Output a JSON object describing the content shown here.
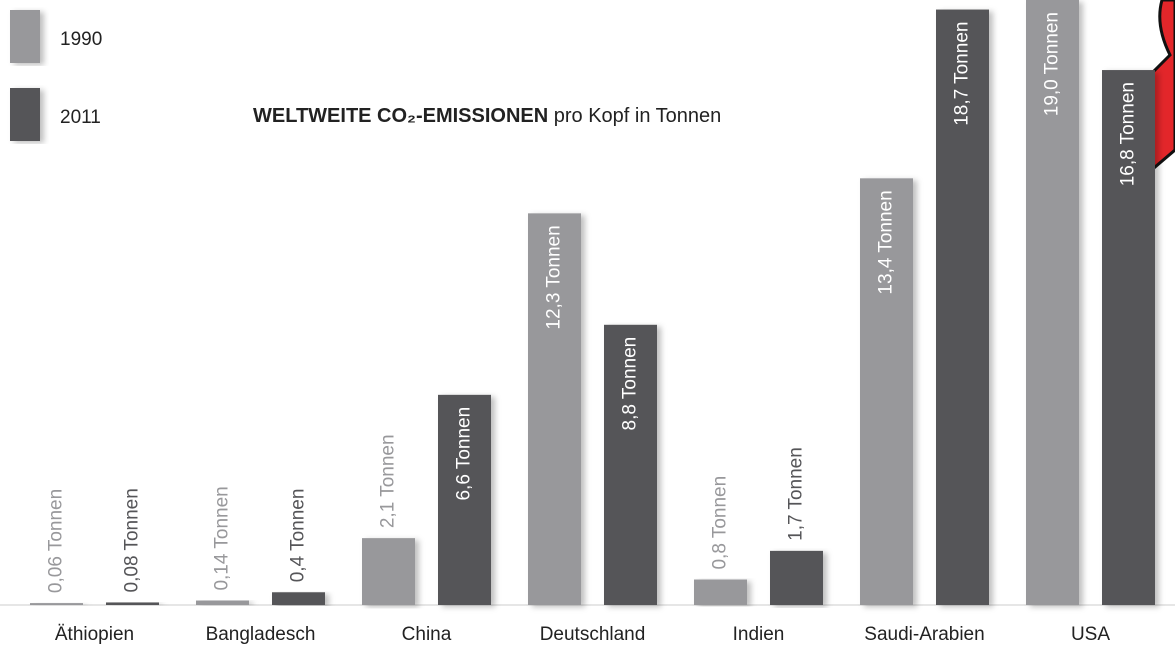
{
  "chart_data": {
    "type": "bar",
    "title_bold": "WELTWEITE CO₂-EMISSIONEN",
    "title_rest": "pro Kopf in Tonnen",
    "categories": [
      "Äthiopien",
      "Bangladesch",
      "China",
      "Deutschland",
      "Indien",
      "Saudi-Arabien",
      "USA"
    ],
    "series": [
      {
        "name": "1990",
        "color": "#98989b",
        "values": [
          0.06,
          0.14,
          2.1,
          12.3,
          0.8,
          13.4,
          19.0
        ],
        "value_labels": [
          "0,06 Tonnen",
          "0,14 Tonnen",
          "2,1 Tonnen",
          "12,3 Tonnen",
          "0,8 Tonnen",
          "13,4 Tonnen",
          "19,0 Tonnen"
        ]
      },
      {
        "name": "2011",
        "color": "#555558",
        "values": [
          0.08,
          0.4,
          6.6,
          8.8,
          1.7,
          18.7,
          16.8
        ],
        "value_labels": [
          "0,08 Tonnen",
          "0,4 Tonnen",
          "6,6 Tonnen",
          "8,8 Tonnen",
          "1,7 Tonnen",
          "18,7 Tonnen",
          "16,8 Tonnen"
        ]
      }
    ],
    "ylim": [
      0,
      19
    ]
  }
}
